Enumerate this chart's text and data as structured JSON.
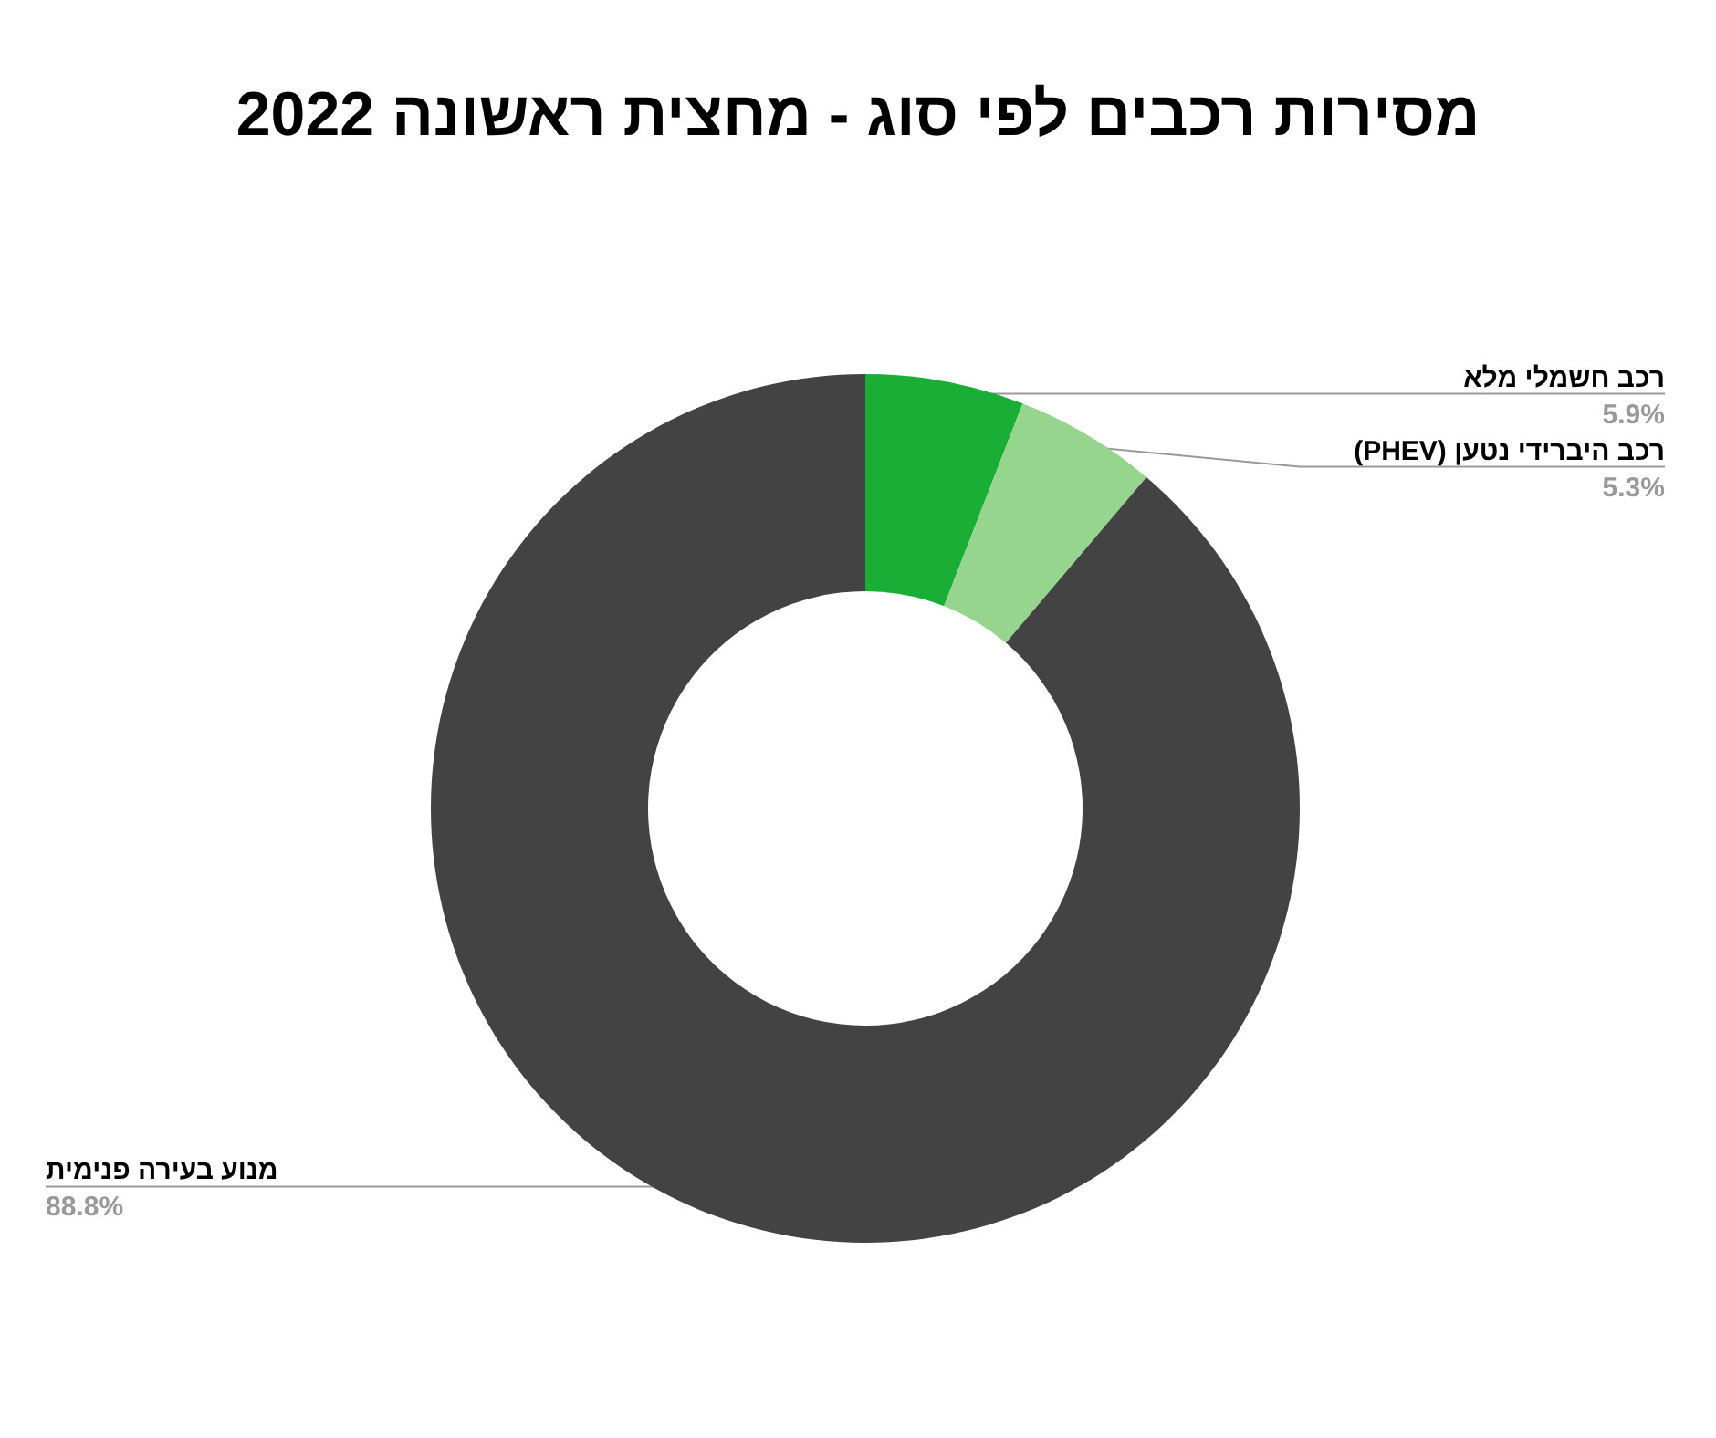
{
  "chart_data": {
    "type": "donut",
    "title": "מסירות רכבים לפי סוג - מחצית ראשונה 2022",
    "categories": [
      "רכב חשמלי מלא",
      "רכב היברידי נטען (PHEV)",
      "מנוע בעירה פנימית"
    ],
    "values": [
      5.9,
      5.3,
      88.8
    ],
    "value_labels": [
      "5.9%",
      "5.3%",
      "88.8%"
    ],
    "colors": [
      "#1aae36",
      "#96d58e",
      "#434343"
    ]
  }
}
